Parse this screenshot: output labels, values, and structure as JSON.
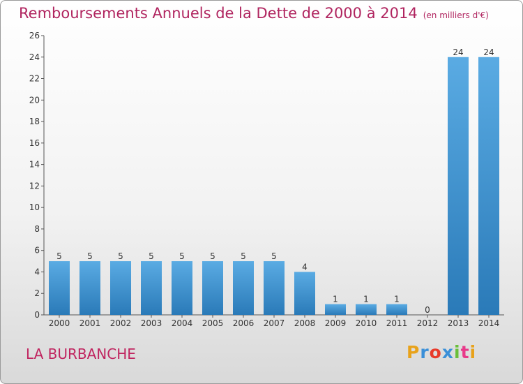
{
  "header": {
    "title": "Remboursements Annuels de la Dette de 2000 à 2014",
    "unit": "(en milliers d'€)"
  },
  "footer": {
    "commune": "LA BURBANCHE",
    "logo": "Proxiti"
  },
  "colors": {
    "title": "#b0245f",
    "bar_light": "#5aabe3",
    "bar_dark": "#2a7ab8",
    "logo": [
      "#e8a21a",
      "#3a8fd8",
      "#e83a2a",
      "#3a8fd8",
      "#6abf3a",
      "#e83a8a",
      "#e8a21a"
    ]
  },
  "chart_data": {
    "type": "bar",
    "title": "Remboursements Annuels de la Dette de 2000 à 2014",
    "categories": [
      "2000",
      "2001",
      "2002",
      "2003",
      "2004",
      "2005",
      "2006",
      "2007",
      "2008",
      "2009",
      "2010",
      "2011",
      "2012",
      "2013",
      "2014"
    ],
    "values": [
      5,
      5,
      5,
      5,
      5,
      5,
      5,
      5,
      4,
      1,
      1,
      1,
      0,
      24,
      24
    ],
    "ylim": [
      0,
      26
    ],
    "yticks": [
      0,
      2,
      4,
      6,
      8,
      10,
      12,
      14,
      16,
      18,
      20,
      22,
      24,
      26
    ],
    "grid": false,
    "legend": "none"
  }
}
